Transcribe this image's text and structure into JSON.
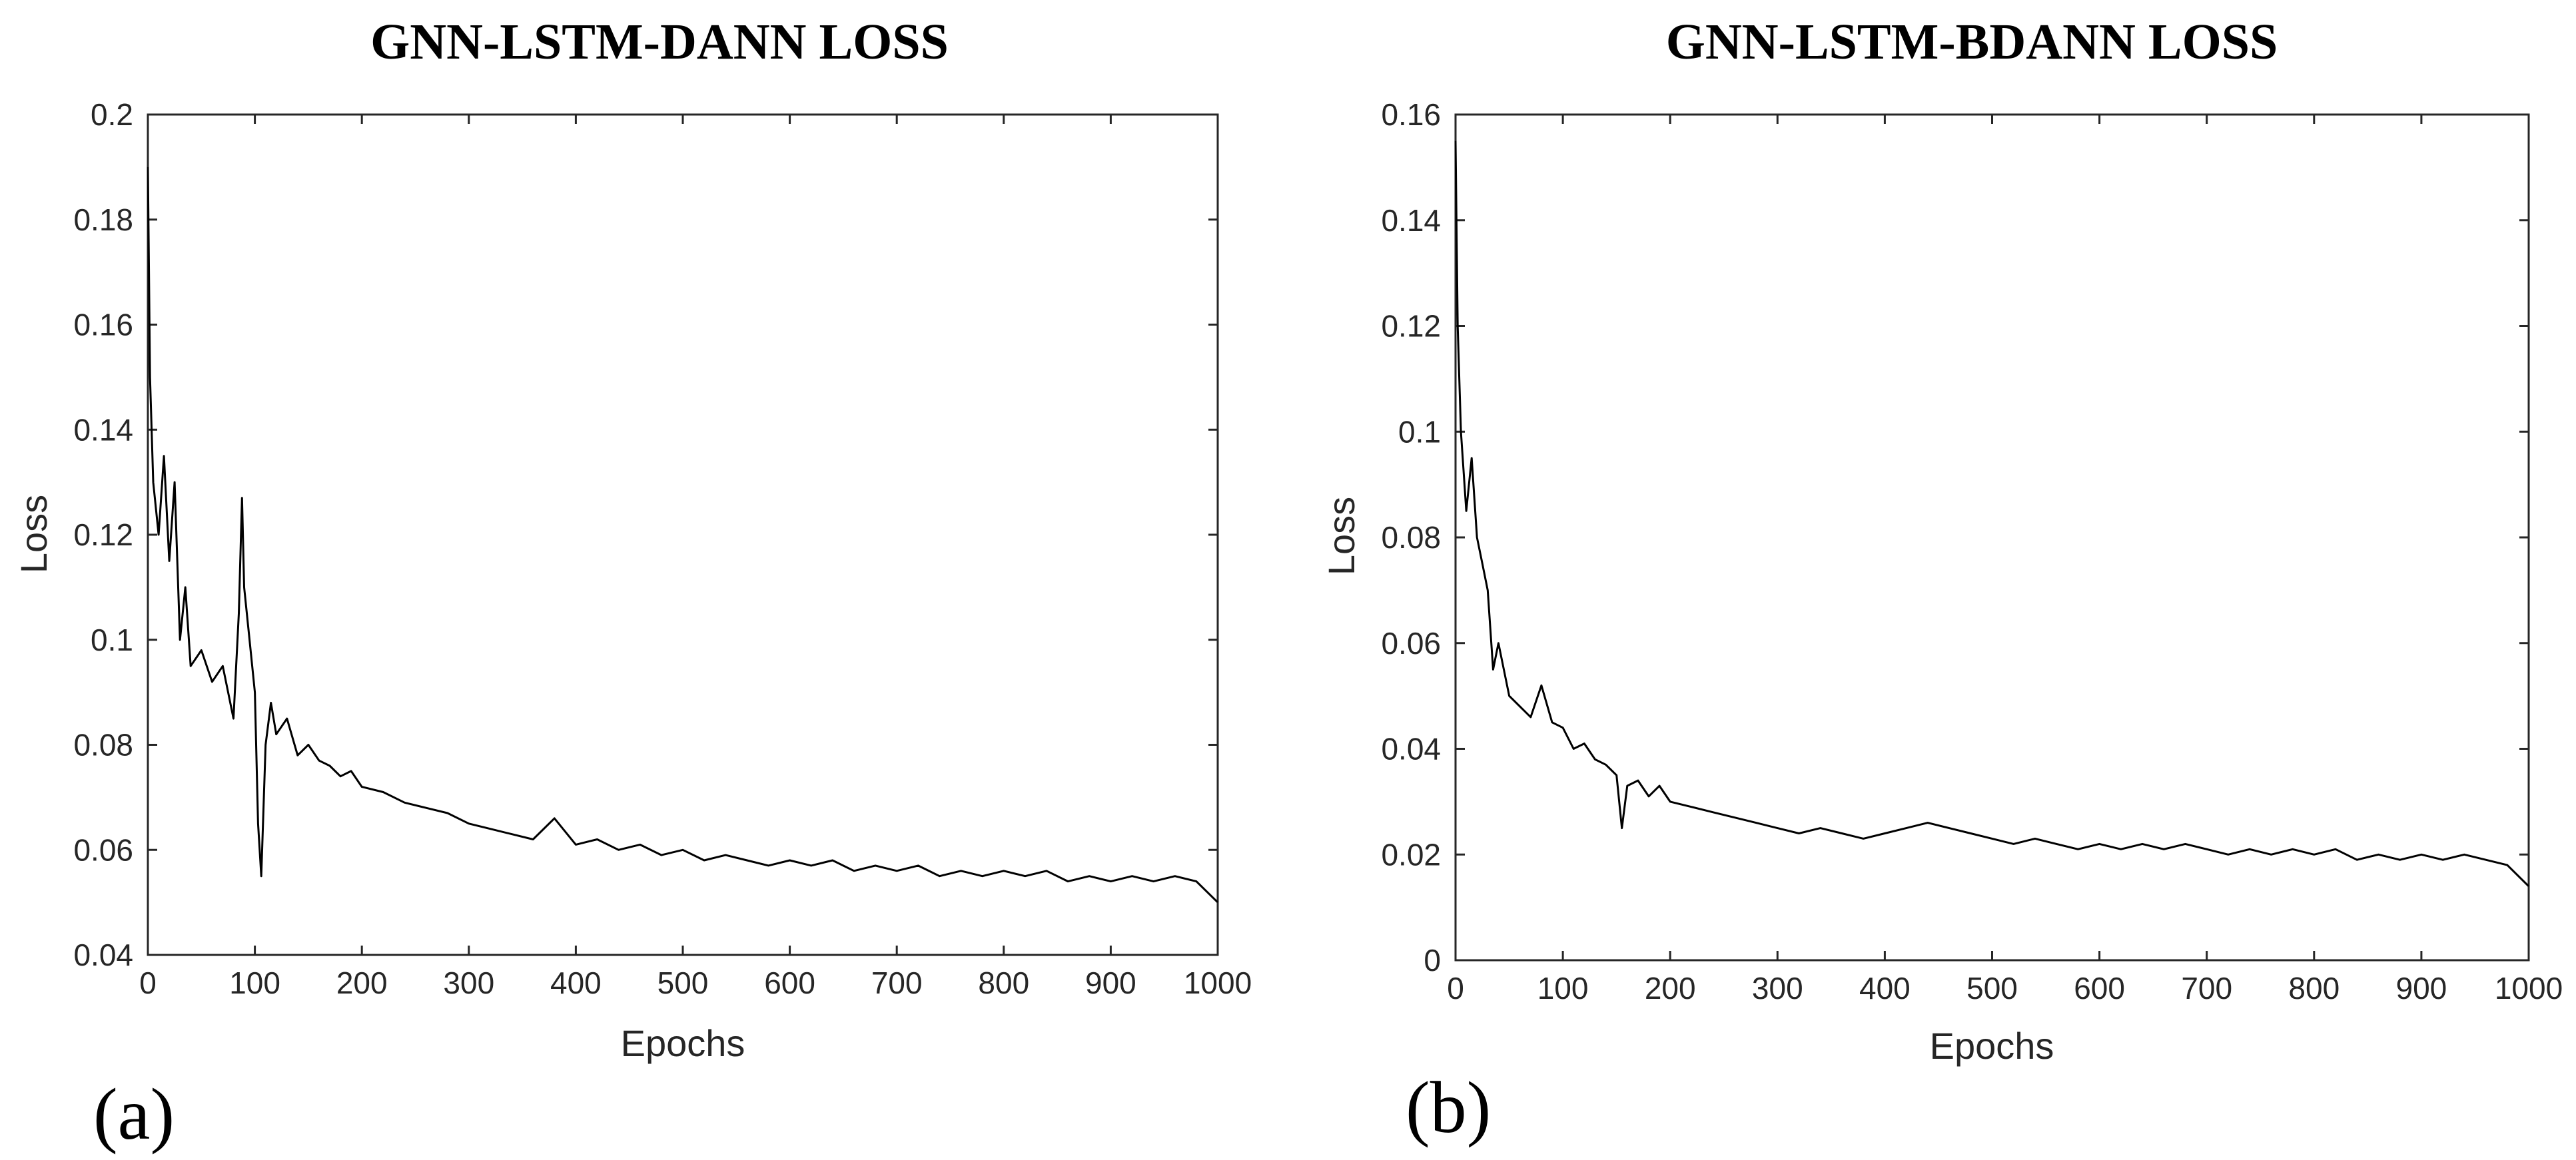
{
  "chart_data": [
    {
      "type": "line",
      "panel_label": "(a)",
      "title": "GNN-LSTM-DANN LOSS",
      "xlabel": "Epochs",
      "ylabel": "Loss",
      "xlim": [
        0,
        1000
      ],
      "ylim": [
        0.04,
        0.2
      ],
      "xticks": [
        0,
        100,
        200,
        300,
        400,
        500,
        600,
        700,
        800,
        900,
        1000
      ],
      "xtick_labels": [
        "0",
        "100",
        "200",
        "300",
        "400",
        "500",
        "600",
        "700",
        "800",
        "900",
        "1000"
      ],
      "yticks": [
        0.04,
        0.06,
        0.08,
        0.1,
        0.12,
        0.14,
        0.16,
        0.18,
        0.2
      ],
      "ytick_labels": [
        "0.04",
        "0.06",
        "0.08",
        "0.1",
        "0.12",
        "0.14",
        "0.16",
        "0.18",
        "0.2"
      ],
      "grid": false,
      "series": [
        {
          "name": "Loss",
          "x": [
            0,
            2,
            5,
            10,
            15,
            20,
            25,
            30,
            35,
            40,
            50,
            60,
            70,
            80,
            85,
            88,
            90,
            95,
            100,
            103,
            106,
            110,
            115,
            120,
            130,
            140,
            150,
            160,
            170,
            180,
            190,
            200,
            220,
            240,
            260,
            280,
            300,
            320,
            340,
            360,
            380,
            400,
            420,
            440,
            460,
            480,
            500,
            520,
            540,
            560,
            580,
            600,
            620,
            640,
            660,
            680,
            700,
            720,
            740,
            760,
            780,
            800,
            820,
            840,
            860,
            880,
            900,
            920,
            940,
            960,
            980,
            1000
          ],
          "y": [
            0.19,
            0.15,
            0.13,
            0.12,
            0.135,
            0.115,
            0.13,
            0.1,
            0.11,
            0.095,
            0.098,
            0.092,
            0.095,
            0.085,
            0.105,
            0.127,
            0.11,
            0.1,
            0.09,
            0.065,
            0.055,
            0.08,
            0.088,
            0.082,
            0.085,
            0.078,
            0.08,
            0.077,
            0.076,
            0.074,
            0.075,
            0.072,
            0.071,
            0.069,
            0.068,
            0.067,
            0.065,
            0.064,
            0.063,
            0.062,
            0.066,
            0.061,
            0.062,
            0.06,
            0.061,
            0.059,
            0.06,
            0.058,
            0.059,
            0.058,
            0.057,
            0.058,
            0.057,
            0.058,
            0.056,
            0.057,
            0.056,
            0.057,
            0.055,
            0.056,
            0.055,
            0.056,
            0.055,
            0.056,
            0.054,
            0.055,
            0.054,
            0.055,
            0.054,
            0.055,
            0.054,
            0.05
          ]
        }
      ]
    },
    {
      "type": "line",
      "panel_label": "(b)",
      "title": "GNN-LSTM-BDANN LOSS",
      "xlabel": "Epochs",
      "ylabel": "Loss",
      "xlim": [
        0,
        1000
      ],
      "ylim": [
        0,
        0.16
      ],
      "xticks": [
        0,
        100,
        200,
        300,
        400,
        500,
        600,
        700,
        800,
        900,
        1000
      ],
      "xtick_labels": [
        "0",
        "100",
        "200",
        "300",
        "400",
        "500",
        "600",
        "700",
        "800",
        "900",
        "1000"
      ],
      "yticks": [
        0,
        0.02,
        0.04,
        0.06,
        0.08,
        0.1,
        0.12,
        0.14,
        0.16
      ],
      "ytick_labels": [
        "0",
        "0.02",
        "0.04",
        "0.06",
        "0.08",
        "0.1",
        "0.12",
        "0.14",
        "0.16"
      ],
      "grid": false,
      "series": [
        {
          "name": "Loss",
          "x": [
            0,
            2,
            5,
            10,
            15,
            20,
            25,
            30,
            35,
            40,
            50,
            60,
            70,
            80,
            90,
            100,
            110,
            120,
            130,
            140,
            150,
            155,
            160,
            170,
            180,
            190,
            200,
            220,
            240,
            260,
            280,
            300,
            320,
            340,
            360,
            380,
            400,
            420,
            440,
            460,
            480,
            500,
            520,
            540,
            560,
            580,
            600,
            620,
            640,
            660,
            680,
            700,
            720,
            740,
            760,
            780,
            800,
            820,
            840,
            860,
            880,
            900,
            920,
            940,
            960,
            980,
            1000
          ],
          "y": [
            0.155,
            0.12,
            0.1,
            0.085,
            0.095,
            0.08,
            0.075,
            0.07,
            0.055,
            0.06,
            0.05,
            0.048,
            0.046,
            0.052,
            0.045,
            0.044,
            0.04,
            0.041,
            0.038,
            0.037,
            0.035,
            0.025,
            0.033,
            0.034,
            0.031,
            0.033,
            0.03,
            0.029,
            0.028,
            0.027,
            0.026,
            0.025,
            0.024,
            0.025,
            0.024,
            0.023,
            0.024,
            0.025,
            0.026,
            0.025,
            0.024,
            0.023,
            0.022,
            0.023,
            0.022,
            0.021,
            0.022,
            0.021,
            0.022,
            0.021,
            0.022,
            0.021,
            0.02,
            0.021,
            0.02,
            0.021,
            0.02,
            0.021,
            0.019,
            0.02,
            0.019,
            0.02,
            0.019,
            0.02,
            0.019,
            0.018,
            0.014
          ]
        }
      ]
    }
  ]
}
